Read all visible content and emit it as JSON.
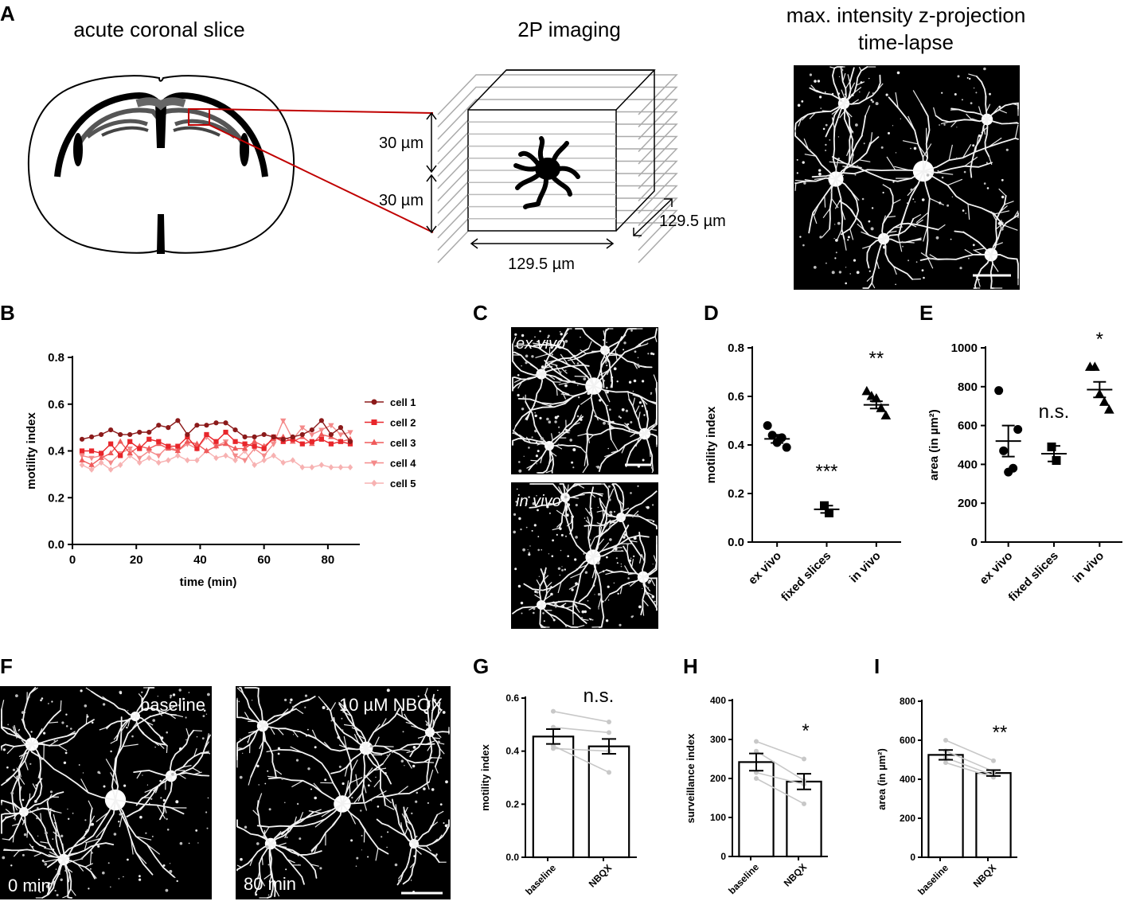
{
  "panels": {
    "A": {
      "label": "A",
      "title_left": "acute coronal slice",
      "title_mid": "2P imaging",
      "title_right_1": "max. intensity z-projection",
      "title_right_2": "time-lapse",
      "dim_30a": "30 µm",
      "dim_30b": "30 µm",
      "dim_side": "129.5 µm",
      "dim_bottom": "129.5 µm"
    },
    "B": {
      "label": "B"
    },
    "C": {
      "label": "C",
      "top_caption": "ex vivo",
      "bottom_caption": "in vivo"
    },
    "D": {
      "label": "D"
    },
    "E": {
      "label": "E"
    },
    "F": {
      "label": "F",
      "left_caption": "baseline",
      "right_caption": "10 µM NBQX",
      "left_time": "0 min",
      "right_time": "80 min"
    },
    "G": {
      "label": "G"
    },
    "H": {
      "label": "H"
    },
    "I": {
      "label": "I"
    }
  },
  "colors": {
    "cell1": "#8b1a1a",
    "cell2": "#e8262b",
    "cell3": "#ef5a5a",
    "cell4": "#f48a8a",
    "cell5": "#f7b2b2",
    "callout": "#c00000",
    "paired": "#c8c8c8"
  },
  "chart_data": [
    {
      "id": "B",
      "type": "line",
      "xlabel": "time (min)",
      "ylabel": "motility index",
      "xlim": [
        0,
        90
      ],
      "ylim": [
        0,
        0.8
      ],
      "xticks": [
        "0",
        "20",
        "40",
        "60",
        "80"
      ],
      "yticks": [
        "0.0",
        "0.2",
        "0.4",
        "0.6",
        "0.8"
      ],
      "legend": "right",
      "x": [
        3,
        6,
        9,
        12,
        15,
        18,
        21,
        24,
        27,
        30,
        33,
        36,
        39,
        42,
        45,
        48,
        51,
        54,
        57,
        60,
        63,
        66,
        69,
        72,
        75,
        78,
        81,
        84,
        87
      ],
      "series": [
        {
          "name": "cell 1",
          "marker": "circle",
          "values": [
            0.45,
            0.46,
            0.47,
            0.49,
            0.47,
            0.47,
            0.48,
            0.48,
            0.51,
            0.5,
            0.53,
            0.47,
            0.51,
            0.51,
            0.52,
            0.52,
            0.49,
            0.46,
            0.46,
            0.47,
            0.46,
            0.45,
            0.46,
            0.47,
            0.49,
            0.53,
            0.47,
            0.5,
            0.44
          ]
        },
        {
          "name": "cell 2",
          "marker": "square",
          "values": [
            0.4,
            0.4,
            0.39,
            0.43,
            0.38,
            0.44,
            0.41,
            0.45,
            0.44,
            0.42,
            0.42,
            0.46,
            0.41,
            0.47,
            0.44,
            0.48,
            0.44,
            0.43,
            0.42,
            0.41,
            0.46,
            0.44,
            0.45,
            0.43,
            0.44,
            0.45,
            0.43,
            0.44,
            0.43
          ]
        },
        {
          "name": "cell 3",
          "marker": "triangle-up",
          "values": [
            0.36,
            0.34,
            0.37,
            0.39,
            0.44,
            0.39,
            0.42,
            0.41,
            0.43,
            0.41,
            0.4,
            0.44,
            0.43,
            0.4,
            0.42,
            0.43,
            0.41,
            0.41,
            0.44,
            0.42,
            0.45,
            0.46,
            0.44,
            0.46,
            0.43,
            0.47,
            0.46,
            0.44,
            0.45
          ]
        },
        {
          "name": "cell 4",
          "marker": "triangle-down",
          "values": [
            0.38,
            0.37,
            0.38,
            0.35,
            0.39,
            0.41,
            0.37,
            0.4,
            0.38,
            0.42,
            0.4,
            0.43,
            0.41,
            0.46,
            0.42,
            0.44,
            0.38,
            0.36,
            0.41,
            0.38,
            0.43,
            0.53,
            0.45,
            0.5,
            0.47,
            0.49,
            0.51,
            0.47,
            0.48
          ]
        },
        {
          "name": "cell 5",
          "marker": "diamond",
          "values": [
            0.34,
            0.32,
            0.35,
            0.32,
            0.34,
            0.38,
            0.35,
            0.37,
            0.35,
            0.36,
            0.38,
            0.36,
            0.36,
            0.4,
            0.37,
            0.38,
            0.36,
            0.4,
            0.34,
            0.36,
            0.38,
            0.35,
            0.36,
            0.33,
            0.33,
            0.34,
            0.33,
            0.33,
            0.33
          ]
        }
      ]
    },
    {
      "id": "D",
      "type": "scatter",
      "ylabel": "motility index",
      "ylim": [
        0,
        0.8
      ],
      "yticks": [
        "0.0",
        "0.2",
        "0.4",
        "0.6",
        "0.8"
      ],
      "categories": [
        "ex vivo",
        "fixed slices",
        "in vivo"
      ],
      "markers": [
        "circle",
        "square",
        "triangle-up"
      ],
      "points": [
        [
          0.48,
          0.44,
          0.41,
          0.43,
          0.39
        ],
        [
          0.15,
          0.12
        ],
        [
          0.62,
          0.6,
          0.59,
          0.55,
          0.52
        ]
      ],
      "mean": [
        0.425,
        0.135,
        0.565
      ],
      "sem": [
        0.017,
        0.015,
        0.015
      ],
      "significance": [
        "",
        "***",
        "**"
      ]
    },
    {
      "id": "E",
      "type": "scatter",
      "ylabel": "area (in µm²)",
      "ylim": [
        0,
        1000
      ],
      "yticks": [
        "0",
        "200",
        "400",
        "600",
        "800",
        "1000"
      ],
      "categories": [
        "ex vivo",
        "fixed slices",
        "in vivo"
      ],
      "markers": [
        "circle",
        "square",
        "triangle-up"
      ],
      "points": [
        [
          780,
          470,
          360,
          380,
          580
        ],
        [
          490,
          420
        ],
        [
          900,
          900,
          760,
          720,
          680
        ]
      ],
      "mean": [
        520,
        455,
        785
      ],
      "sem": [
        80,
        40,
        40
      ],
      "significance": [
        "",
        "n.s.",
        "*"
      ]
    },
    {
      "id": "G",
      "type": "bar",
      "ylabel": "motility index",
      "ylim": [
        0,
        0.6
      ],
      "yticks": [
        "0.0",
        "0.2",
        "0.4",
        "0.6"
      ],
      "categories": [
        "baseline",
        "NBQX"
      ],
      "values": [
        0.455,
        0.418
      ],
      "sem": [
        0.028,
        0.028
      ],
      "paired": [
        [
          0.55,
          0.51
        ],
        [
          0.49,
          0.47
        ],
        [
          0.42,
          0.32
        ],
        [
          0.41,
          0.4
        ]
      ],
      "significance": "n.s."
    },
    {
      "id": "H",
      "type": "bar",
      "ylabel": "surveillance index",
      "ylim": [
        0,
        400
      ],
      "yticks": [
        "0",
        "100",
        "200",
        "300",
        "400"
      ],
      "categories": [
        "baseline",
        "NBQX"
      ],
      "values": [
        242,
        192
      ],
      "sem": [
        22,
        20
      ],
      "paired": [
        [
          295,
          250
        ],
        [
          270,
          195
        ],
        [
          215,
          185
        ],
        [
          200,
          135
        ]
      ],
      "significance": "*"
    },
    {
      "id": "I",
      "type": "bar",
      "ylabel": "area (in µm²)",
      "ylim": [
        0,
        800
      ],
      "yticks": [
        "0",
        "200",
        "400",
        "600",
        "800"
      ],
      "categories": [
        "baseline",
        "NBQX"
      ],
      "values": [
        525,
        432
      ],
      "sem": [
        25,
        15
      ],
      "paired": [
        [
          600,
          495
        ],
        [
          545,
          440
        ],
        [
          510,
          420
        ],
        [
          485,
          410
        ]
      ],
      "significance": "**"
    }
  ]
}
